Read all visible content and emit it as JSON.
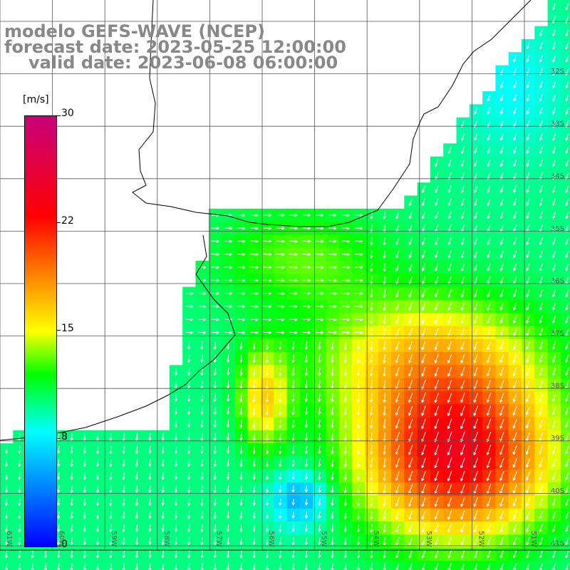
{
  "title": {
    "line1": "modelo GEFS-WAVE (NCEP)",
    "line2": "forecast date: 2023-05-25 12:00:00",
    "line3": "valid date: 2023-06-08 06:00:00"
  },
  "colorbar": {
    "unit": "[m/s]",
    "min": 0,
    "max": 30,
    "ticks": [
      "30",
      "22",
      "15",
      "8",
      "0"
    ],
    "tick_values": [
      30,
      22,
      15,
      8,
      0
    ],
    "palette": [
      "#0000ff",
      "#00ffff",
      "#00ff00",
      "#ffff00",
      "#ff8000",
      "#ff0000",
      "#c8007a"
    ]
  },
  "lat_labels": [
    "32S",
    "33S",
    "34S",
    "35S",
    "36S",
    "37S",
    "38S",
    "39S",
    "40S",
    "41S"
  ],
  "lon_labels": [
    "61W",
    "60W",
    "59W",
    "58W",
    "57W",
    "56W",
    "55W",
    "54W",
    "53W",
    "52W",
    "51W"
  ],
  "colors": {
    "land": "#ffffff",
    "grid": "#555555",
    "coast": "#000000",
    "arrow": "#ffffff",
    "title": "#888888"
  }
}
